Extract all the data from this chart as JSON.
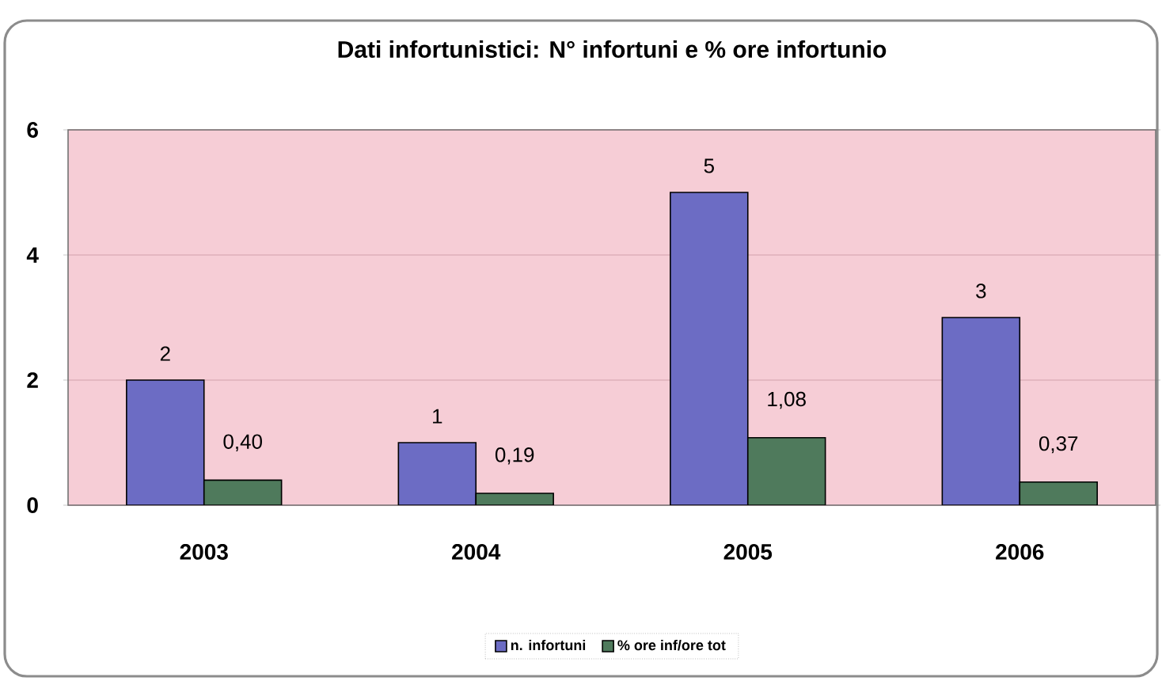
{
  "chart_data": {
    "type": "bar",
    "title": "Dati infortunistici: N° infortuni e % ore infortunio",
    "categories": [
      "2003",
      "2004",
      "2005",
      "2006"
    ],
    "series": [
      {
        "name": "n. infortuni",
        "color": "#6c6cc4",
        "values": [
          2,
          1,
          5,
          3
        ],
        "value_labels": [
          "2",
          "1",
          "5",
          "3"
        ]
      },
      {
        "name": "% ore inf/ore tot",
        "color": "#4f7a5c",
        "values": [
          0.4,
          0.19,
          1.08,
          0.37
        ],
        "value_labels": [
          "0,40",
          "0,19",
          "1,08",
          "0,37"
        ]
      }
    ],
    "ylim": [
      0,
      6
    ],
    "yticks": [
      0,
      2,
      4,
      6
    ],
    "grid": "y",
    "legend": "bottom"
  }
}
